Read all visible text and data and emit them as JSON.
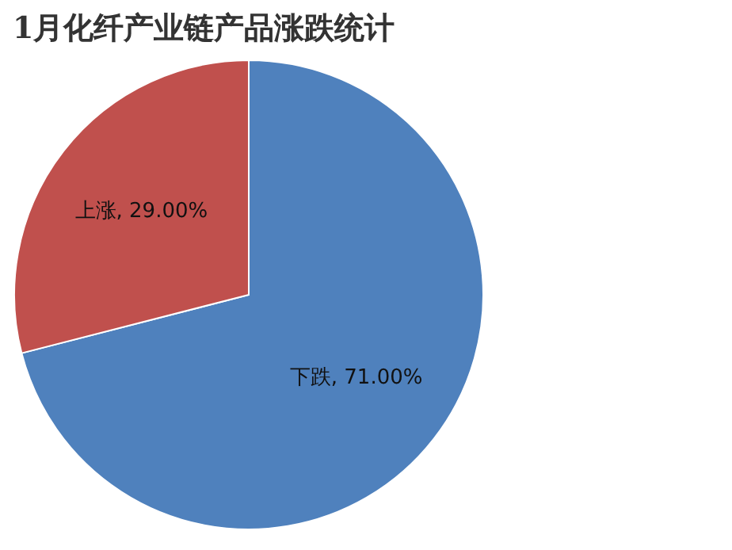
{
  "chart_data": {
    "type": "pie",
    "title": "1月化纤产业链产品涨跌统计",
    "categories": [
      "下跌",
      "上涨"
    ],
    "values": [
      71,
      29
    ],
    "value_labels": [
      "71.00%",
      "29.00%"
    ],
    "colors": [
      "#4f81bd",
      "#c0504d"
    ]
  }
}
